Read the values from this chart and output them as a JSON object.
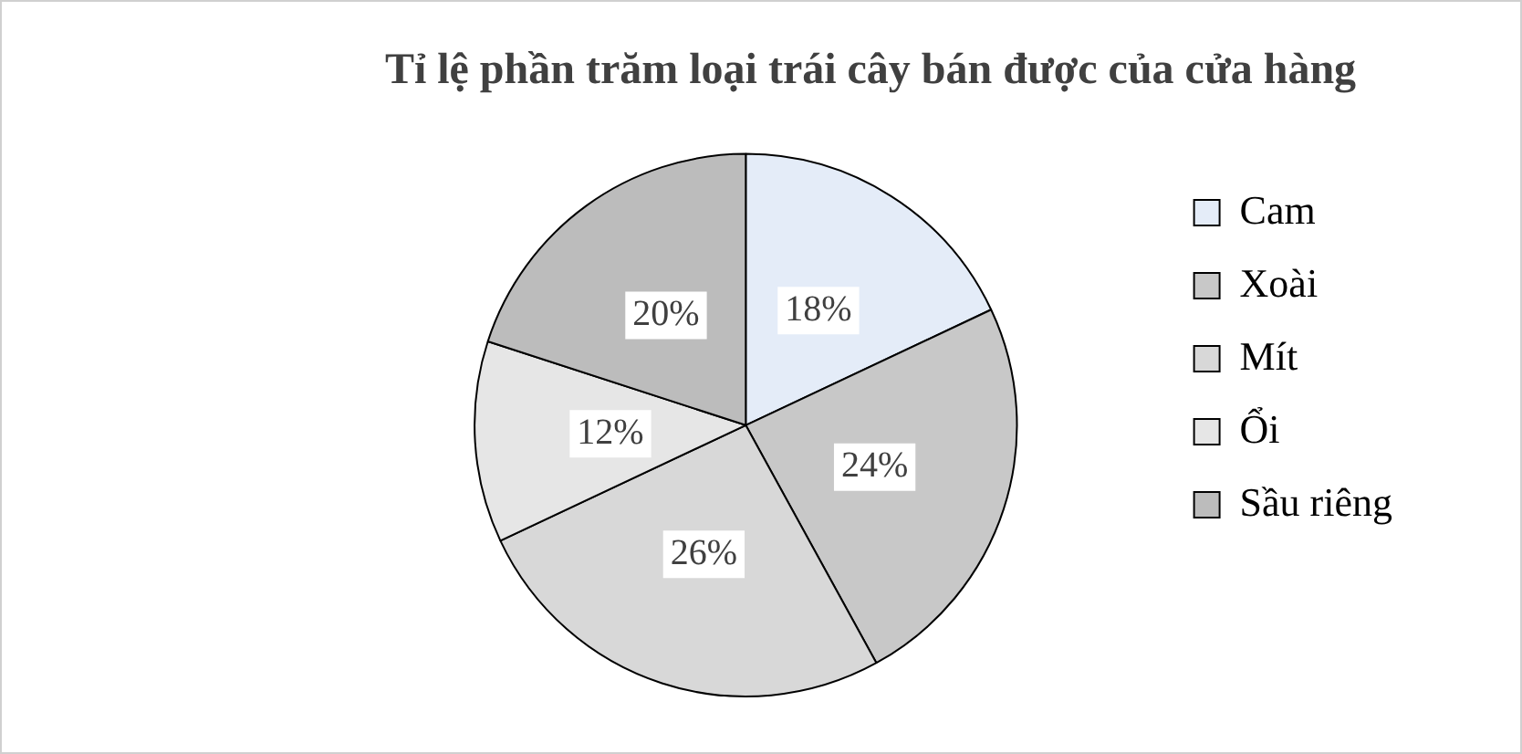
{
  "chart_data": {
    "type": "pie",
    "title": "Tỉ lệ phần trăm loại trái cây bán được của cửa hàng",
    "categories": [
      "Cam",
      "Xoài",
      "Mít",
      "Ổi",
      "Sầu riêng"
    ],
    "values": [
      18,
      24,
      26,
      12,
      20
    ],
    "colors": [
      "#e4ecf8",
      "#c8c8c8",
      "#d8d8d8",
      "#e6e6e6",
      "#bcbcbc"
    ],
    "value_labels": [
      "18%",
      "24%",
      "26%",
      "12%",
      "20%"
    ],
    "legend": "right"
  }
}
